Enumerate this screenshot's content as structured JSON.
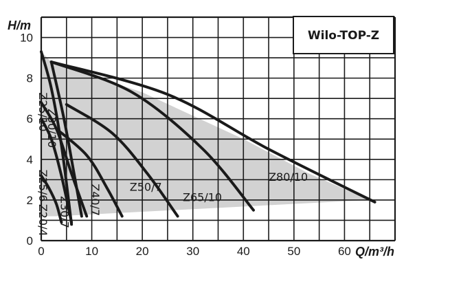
{
  "chart_data": {
    "type": "line",
    "title": "Wilo-TOP-Z",
    "xlabel": "Q/m³/h",
    "ylabel": "H/m",
    "xlim": [
      0,
      70
    ],
    "ylim": [
      0,
      11
    ],
    "grid": true,
    "x_ticks": [
      "0",
      "10",
      "20",
      "30",
      "40",
      "50",
      "60"
    ],
    "y_ticks": [
      "0",
      "2",
      "4",
      "6",
      "8",
      "10"
    ],
    "x_tick_values": [
      0,
      10,
      20,
      30,
      40,
      50,
      60
    ],
    "y_tick_values": [
      0,
      2,
      4,
      6,
      8,
      10
    ],
    "envelope": {
      "points": [
        [
          0,
          9.3
        ],
        [
          2,
          8.8
        ],
        [
          20,
          7.3
        ],
        [
          40,
          5.0
        ],
        [
          53,
          3.3
        ],
        [
          65,
          2.0
        ],
        [
          3,
          1.2
        ],
        [
          0,
          1.2
        ]
      ],
      "color": "#d2d2d2"
    },
    "series": [
      {
        "name": "Z20/4",
        "points": [
          [
            0,
            3.2
          ],
          [
            1.5,
            2.6
          ],
          [
            3,
            1.8
          ],
          [
            4,
            0.9
          ]
        ]
      },
      {
        "name": "Z25/6",
        "points": [
          [
            0,
            6.0
          ],
          [
            2,
            5.0
          ],
          [
            4,
            3.2
          ],
          [
            6,
            0.9
          ]
        ]
      },
      {
        "name": "Z30/7",
        "points": [
          [
            0,
            6.8
          ],
          [
            3,
            5.5
          ],
          [
            6,
            3.3
          ],
          [
            9,
            1.2
          ]
        ]
      },
      {
        "name": "Z25/10",
        "points": [
          [
            0,
            9.3
          ],
          [
            2,
            7.5
          ],
          [
            4,
            4.7
          ],
          [
            6,
            0.8
          ]
        ]
      },
      {
        "name": "Z30/10",
        "points": [
          [
            2,
            8.8
          ],
          [
            4.5,
            6.0
          ],
          [
            6.5,
            3.3
          ],
          [
            8,
            1.2
          ]
        ]
      },
      {
        "name": "Z40/7",
        "points": [
          [
            3,
            5.5
          ],
          [
            9,
            4.2
          ],
          [
            13,
            2.6
          ],
          [
            16,
            1.2
          ]
        ]
      },
      {
        "name": "Z50/7",
        "points": [
          [
            5,
            6.7
          ],
          [
            14,
            5.3
          ],
          [
            21,
            3.3
          ],
          [
            27,
            1.2
          ]
        ]
      },
      {
        "name": "Z65/10",
        "points": [
          [
            2,
            8.8
          ],
          [
            18,
            7.3
          ],
          [
            32,
            4.5
          ],
          [
            42,
            1.5
          ]
        ]
      },
      {
        "name": "Z80/10",
        "points": [
          [
            2,
            8.8
          ],
          [
            25,
            7.2
          ],
          [
            45,
            4.5
          ],
          [
            66,
            1.9
          ]
        ]
      }
    ],
    "labels": [
      {
        "text": "Z25/10",
        "x": 0.2,
        "y": 7.3,
        "rotate": 90
      },
      {
        "text": "Z30/10",
        "x": 2.0,
        "y": 6.5,
        "rotate": 90
      },
      {
        "text": "Z25/6",
        "x": 0.2,
        "y": 3.5,
        "rotate": 90
      },
      {
        "text": "Z20/4",
        "x": 0.2,
        "y": 1.8,
        "rotate": 90
      },
      {
        "text": "Z30/7",
        "x": 4.5,
        "y": 2.2,
        "rotate": 90
      },
      {
        "text": "Z40/7",
        "x": 10.5,
        "y": 2.8,
        "rotate": 90
      },
      {
        "text": "Z50/7",
        "x": 17.5,
        "y": 2.6,
        "rotate": 0
      },
      {
        "text": "Z65/10",
        "x": 28.0,
        "y": 2.1,
        "rotate": 0
      },
      {
        "text": "Z80/10",
        "x": 45.0,
        "y": 3.1,
        "rotate": 0
      }
    ]
  }
}
